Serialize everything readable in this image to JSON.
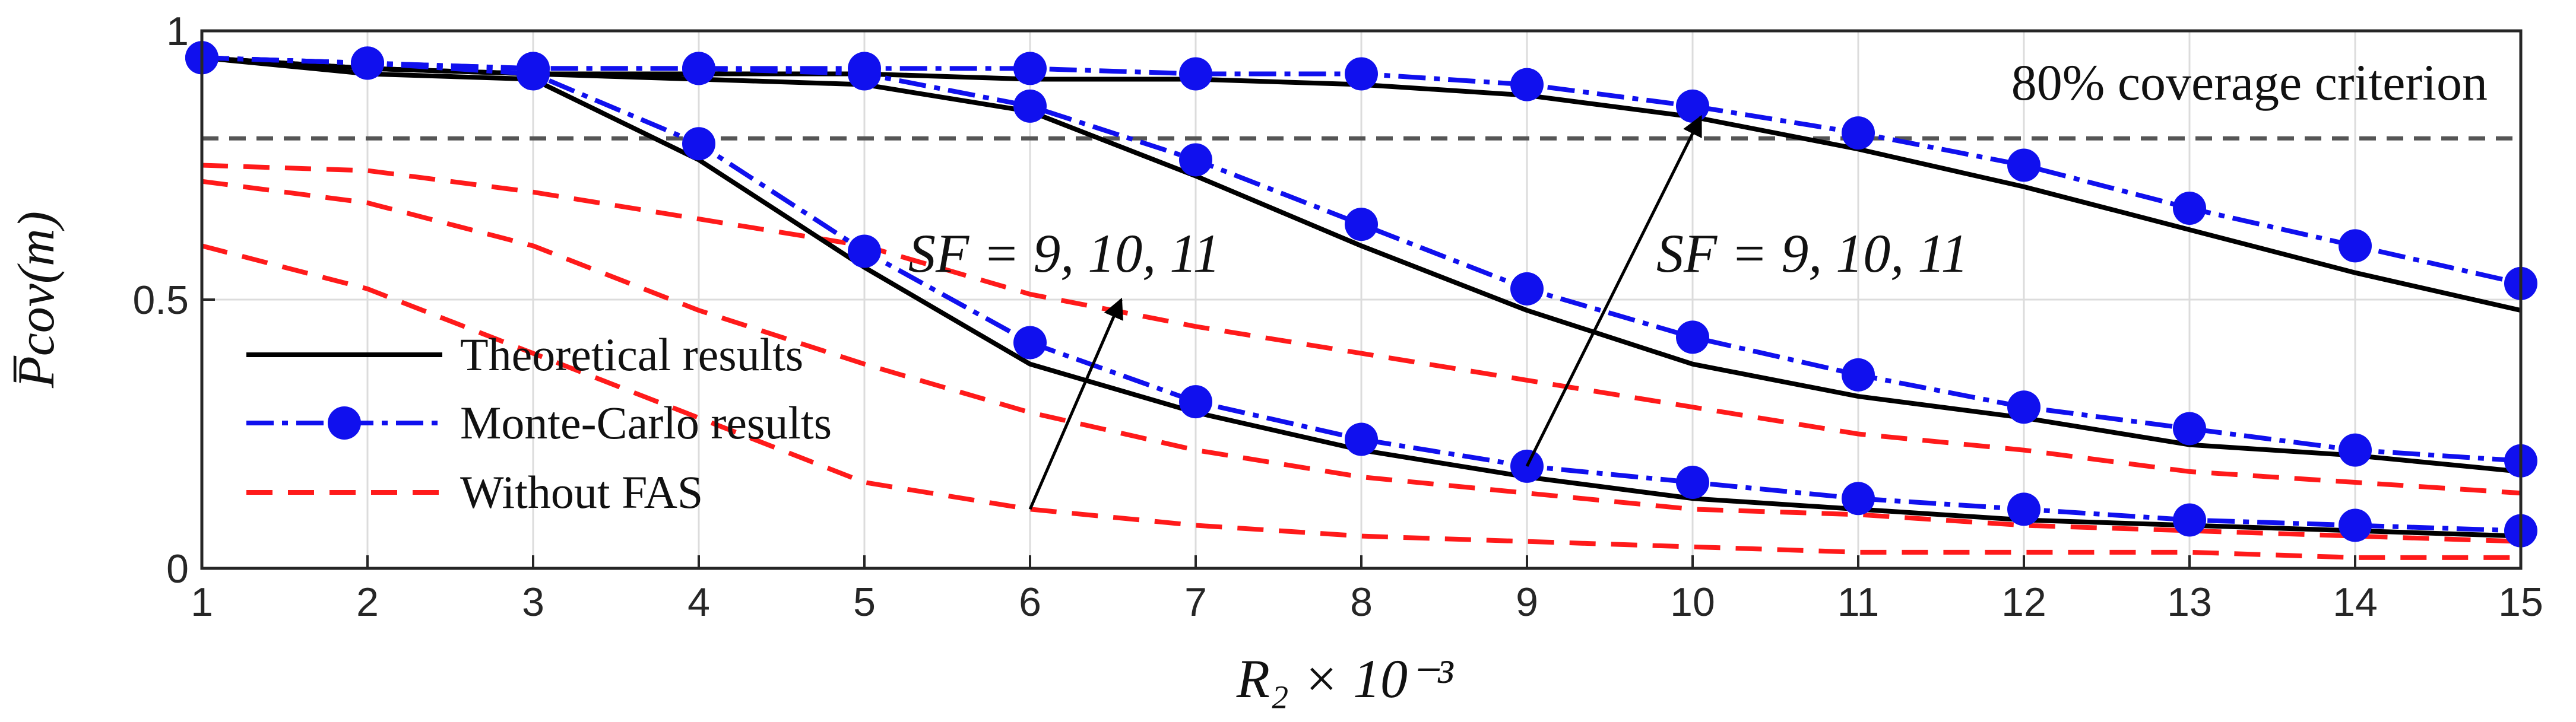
{
  "chart_data": {
    "type": "line",
    "title": "",
    "xlabel": "R₂ × 10⁻³",
    "ylabel": "P̅cov(m)",
    "xlim": [
      1,
      15
    ],
    "ylim": [
      0,
      1
    ],
    "xticks": [
      "1",
      "2",
      "3",
      "4",
      "5",
      "6",
      "7",
      "8",
      "9",
      "10",
      "11",
      "12",
      "13",
      "14",
      "15"
    ],
    "yticks": [
      "0",
      "0.5",
      "1"
    ],
    "grid": true,
    "legend_position": "center-left",
    "threshold": {
      "y": 0.8,
      "label": "80% coverage criterion"
    },
    "annotations": [
      {
        "text": "SF = 9,  10,  11"
      },
      {
        "text": "SF = 9,  10,  11"
      }
    ],
    "legend": [
      {
        "label": "Theoretical results",
        "color": "#000000",
        "style": "solid"
      },
      {
        "label": "Monte-Carlo results",
        "color": "#1010ee",
        "style": "dashdot-circle"
      },
      {
        "label": "Without FAS",
        "color": "#ff1a1a",
        "style": "dashed"
      }
    ],
    "x": [
      1,
      2,
      3,
      4,
      5,
      6,
      7,
      8,
      9,
      10,
      11,
      12,
      13,
      14,
      15
    ],
    "series": [
      {
        "group": "Theoretical results",
        "sf": 9,
        "values": [
          0.95,
          0.92,
          0.91,
          0.76,
          0.56,
          0.38,
          0.29,
          0.22,
          0.17,
          0.13,
          0.11,
          0.09,
          0.08,
          0.07,
          0.06
        ]
      },
      {
        "group": "Theoretical results",
        "sf": 10,
        "values": [
          0.95,
          0.93,
          0.92,
          0.91,
          0.9,
          0.85,
          0.73,
          0.6,
          0.48,
          0.38,
          0.32,
          0.28,
          0.23,
          0.21,
          0.18
        ]
      },
      {
        "group": "Theoretical results",
        "sf": 11,
        "values": [
          0.95,
          0.93,
          0.92,
          0.92,
          0.92,
          0.91,
          0.91,
          0.9,
          0.88,
          0.84,
          0.78,
          0.71,
          0.63,
          0.55,
          0.48
        ]
      },
      {
        "group": "Monte-Carlo results",
        "sf": 9,
        "values": [
          0.95,
          0.94,
          0.92,
          0.79,
          0.59,
          0.42,
          0.31,
          0.24,
          0.19,
          0.16,
          0.13,
          0.11,
          0.09,
          0.08,
          0.07
        ]
      },
      {
        "group": "Monte-Carlo results",
        "sf": 10,
        "values": [
          0.95,
          0.94,
          0.93,
          0.93,
          0.92,
          0.86,
          0.76,
          0.64,
          0.52,
          0.43,
          0.36,
          0.3,
          0.26,
          0.22,
          0.2
        ]
      },
      {
        "group": "Monte-Carlo results",
        "sf": 11,
        "values": [
          0.95,
          0.94,
          0.93,
          0.93,
          0.93,
          0.93,
          0.92,
          0.92,
          0.9,
          0.86,
          0.81,
          0.75,
          0.67,
          0.6,
          0.53
        ]
      },
      {
        "group": "Without FAS",
        "sf": 9,
        "values": [
          0.6,
          0.52,
          0.4,
          0.28,
          0.16,
          0.11,
          0.08,
          0.06,
          0.05,
          0.04,
          0.03,
          0.03,
          0.03,
          0.02,
          0.02
        ]
      },
      {
        "group": "Without FAS",
        "sf": 10,
        "values": [
          0.72,
          0.68,
          0.6,
          0.48,
          0.38,
          0.29,
          0.22,
          0.17,
          0.14,
          0.11,
          0.1,
          0.08,
          0.07,
          0.06,
          0.05
        ]
      },
      {
        "group": "Without FAS",
        "sf": 11,
        "values": [
          0.75,
          0.74,
          0.7,
          0.65,
          0.6,
          0.51,
          0.45,
          0.4,
          0.35,
          0.3,
          0.25,
          0.22,
          0.18,
          0.16,
          0.14
        ]
      }
    ]
  }
}
